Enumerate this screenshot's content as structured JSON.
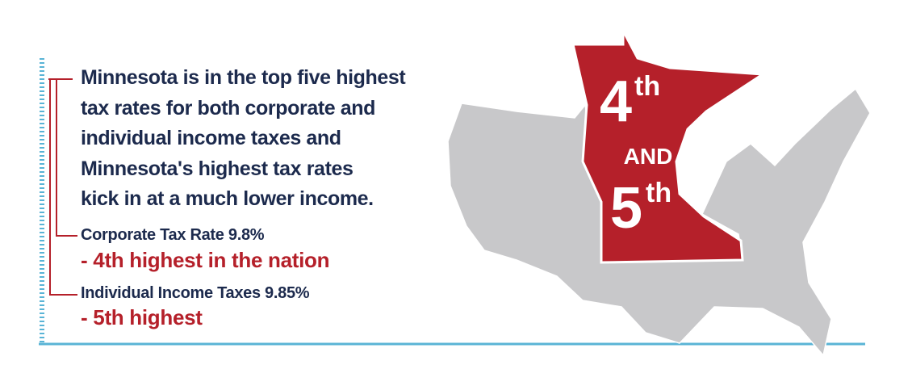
{
  "headline": [
    "Minnesota is in the top five highest",
    "tax rates for both corporate and",
    "individual income taxes and",
    "Minnesota's highest tax rates",
    "kick in at a much lower income."
  ],
  "items": [
    {
      "label": "Corporate Tax Rate 9.8%",
      "note": "- 4th highest in the nation"
    },
    {
      "label": "Individual Income Taxes 9.85%",
      "note": "- 5th highest"
    }
  ],
  "map_badge": {
    "first": "4",
    "first_suffix": "th",
    "joiner": "AND",
    "second": "5",
    "second_suffix": "th"
  }
}
